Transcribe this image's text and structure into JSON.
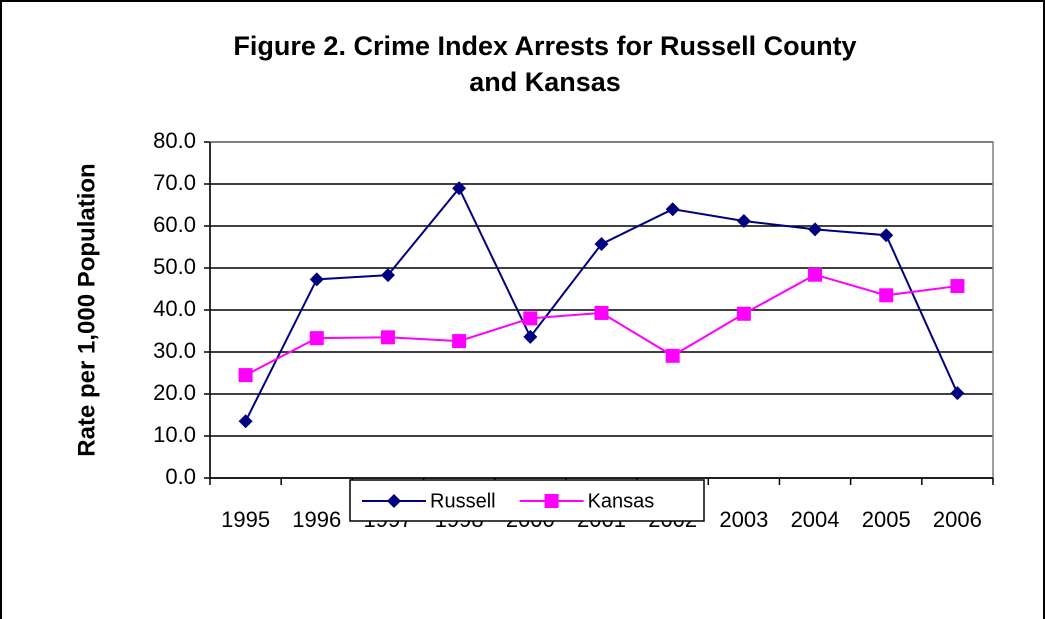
{
  "chart_data": {
    "type": "line",
    "title": [
      "Figure 2. Crime Index Arrests for Russell County",
      "and Kansas"
    ],
    "y_label": "Rate per 1,000 Population",
    "categories": [
      "1995",
      "1996",
      "1997",
      "1998",
      "2000",
      "2001",
      "2002",
      "2003",
      "2004",
      "2005",
      "2006"
    ],
    "series": [
      {
        "name": "Russell",
        "color": "#000080",
        "marker": "diamond",
        "values": [
          13.5,
          47.3,
          48.3,
          69.0,
          33.6,
          55.7,
          64.0,
          61.2,
          59.2,
          57.8,
          20.2
        ]
      },
      {
        "name": "Kansas",
        "color": "#ff00ff",
        "marker": "square",
        "values": [
          24.5,
          33.3,
          33.5,
          32.6,
          38.0,
          39.3,
          29.1,
          39.1,
          48.4,
          43.5,
          45.7
        ]
      }
    ],
    "ylim": [
      0,
      80
    ],
    "yticks": [
      {
        "value": 0,
        "label": "0.0"
      },
      {
        "value": 10,
        "label": "10.0"
      },
      {
        "value": 20,
        "label": "20.0"
      },
      {
        "value": 30,
        "label": "30.0"
      },
      {
        "value": 40,
        "label": "40.0"
      },
      {
        "value": 50,
        "label": "50.0"
      },
      {
        "value": 60,
        "label": "60.0"
      },
      {
        "value": 70,
        "label": "70.0"
      },
      {
        "value": 80,
        "label": "80.0"
      }
    ],
    "grid": true,
    "legend": "bottom"
  }
}
